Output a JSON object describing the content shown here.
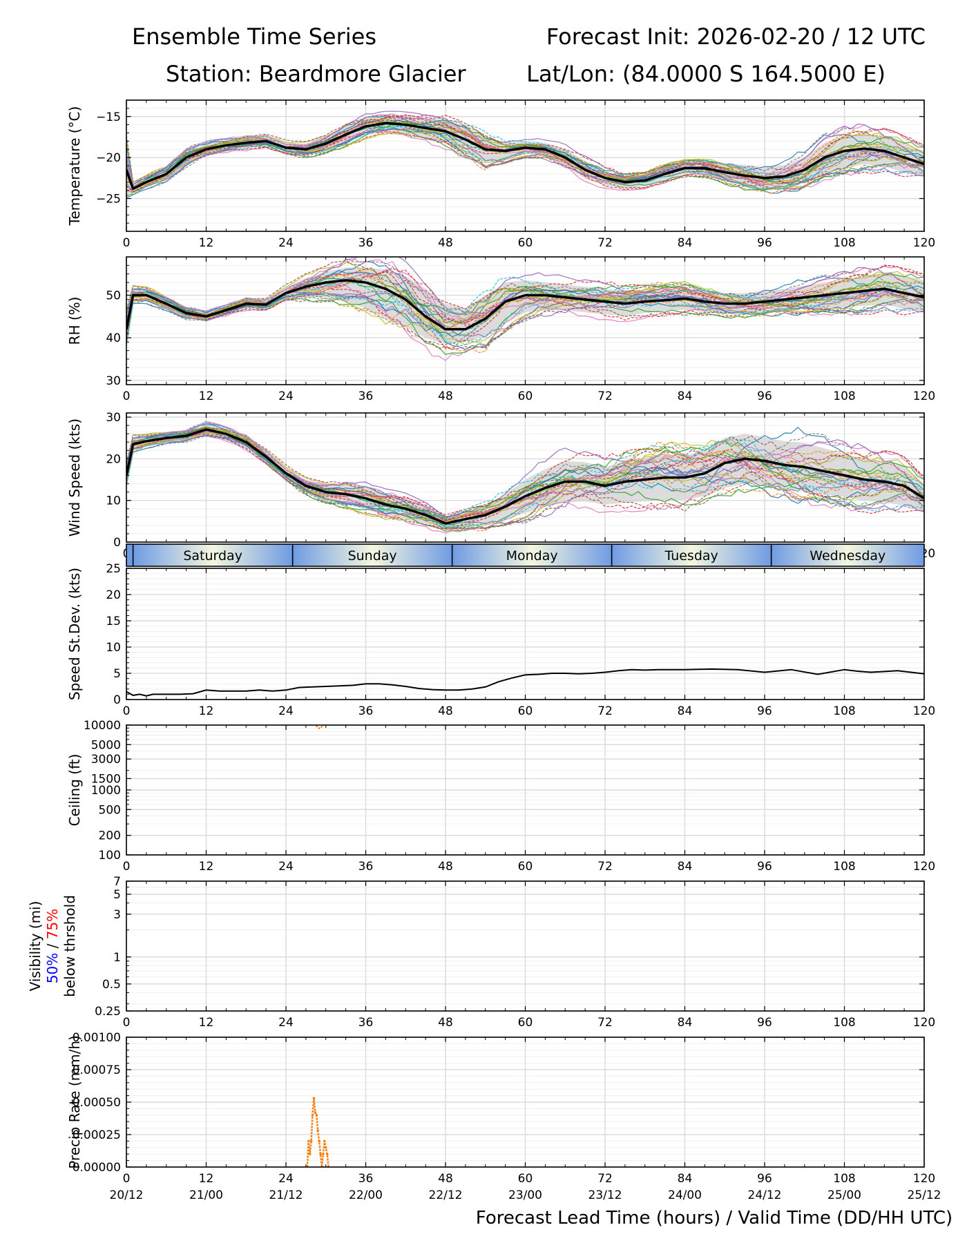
{
  "header": {
    "title_left": "Ensemble Time Series",
    "title_right": "Forecast Init: 2026-02-20 / 12 UTC",
    "station": "Station: Beardmore Glacier",
    "latlon": "Lat/Lon: (84.0000 S 164.5000 E)"
  },
  "x_axis": {
    "ticks": [
      0,
      12,
      24,
      36,
      48,
      60,
      72,
      84,
      96,
      108,
      120
    ],
    "valid_times": [
      "20/12",
      "21/00",
      "21/12",
      "22/00",
      "22/12",
      "23/00",
      "23/12",
      "24/00",
      "24/12",
      "25/00",
      "25/12"
    ],
    "label": "Forecast Lead Time (hours) / Valid Time (DD/HH UTC)"
  },
  "day_band": {
    "days": [
      "Saturday",
      "Sunday",
      "Monday",
      "Tuesday",
      "Wednesday"
    ],
    "boundaries": [
      1,
      25,
      49,
      73,
      97
    ],
    "colors": {
      "edge": "#6f9be3",
      "center": "#f4f7e0"
    }
  },
  "colors": {
    "members": [
      "#1f77b4",
      "#ff7f0e",
      "#2ca02c",
      "#d62728",
      "#9467bd",
      "#8c564b",
      "#e377c2",
      "#7f7f7f",
      "#bcbd22",
      "#17becf"
    ],
    "mean": "#000000",
    "spread": "#d3d3d3",
    "vis50": "#0000ff",
    "vis75": "#ff0000"
  },
  "chart_data": [
    {
      "id": "temperature",
      "type": "line",
      "ylabel": "Temperature (°C)",
      "ylim": [
        -29,
        -13
      ],
      "yticks": [
        -25,
        -20,
        -15
      ],
      "x": [
        0,
        1,
        3,
        6,
        9,
        12,
        15,
        18,
        21,
        24,
        27,
        30,
        33,
        36,
        39,
        42,
        45,
        48,
        51,
        54,
        57,
        60,
        63,
        66,
        69,
        72,
        75,
        78,
        81,
        84,
        87,
        90,
        93,
        96,
        99,
        102,
        105,
        108,
        111,
        114,
        117,
        120
      ],
      "mean": [
        -21.5,
        -23.8,
        -23.0,
        -22.0,
        -20.0,
        -19.0,
        -18.5,
        -18.2,
        -18.0,
        -18.8,
        -19.0,
        -18.3,
        -17.2,
        -16.2,
        -15.8,
        -16.0,
        -16.4,
        -16.8,
        -17.8,
        -19.0,
        -19.2,
        -18.8,
        -19.0,
        -20.0,
        -21.5,
        -22.5,
        -23.0,
        -22.8,
        -22.0,
        -21.3,
        -21.3,
        -21.8,
        -22.2,
        -22.5,
        -22.3,
        -21.5,
        -20.0,
        -19.2,
        -18.9,
        -19.2,
        -20.0,
        -20.8
      ],
      "spread_lo": [
        -24.5,
        -24.3,
        -23.6,
        -22.7,
        -20.8,
        -19.6,
        -19.1,
        -18.8,
        -18.6,
        -19.4,
        -19.7,
        -19.1,
        -18.2,
        -17.3,
        -16.8,
        -17.1,
        -17.6,
        -18.3,
        -19.5,
        -20.5,
        -20.2,
        -19.6,
        -19.8,
        -21.0,
        -22.6,
        -23.4,
        -23.7,
        -23.5,
        -22.8,
        -22.0,
        -22.2,
        -22.9,
        -23.5,
        -23.8,
        -23.7,
        -23.1,
        -21.9,
        -21.2,
        -20.8,
        -21.1,
        -21.8,
        -22.4
      ],
      "spread_hi": [
        -19.0,
        -23.2,
        -22.4,
        -21.3,
        -19.2,
        -18.4,
        -17.9,
        -17.6,
        -17.4,
        -18.2,
        -18.3,
        -17.5,
        -16.2,
        -15.2,
        -14.9,
        -15.0,
        -15.2,
        -15.4,
        -16.2,
        -17.4,
        -18.2,
        -18.0,
        -18.2,
        -19.0,
        -20.4,
        -21.6,
        -22.3,
        -22.1,
        -21.2,
        -20.6,
        -20.4,
        -20.7,
        -20.9,
        -21.2,
        -20.9,
        -20.0,
        -18.2,
        -17.3,
        -17.1,
        -17.4,
        -18.3,
        -19.2
      ],
      "members_shown": 30
    },
    {
      "id": "rh",
      "type": "line",
      "ylabel": "RH (%)",
      "ylim": [
        29,
        59
      ],
      "yticks": [
        30,
        40,
        50
      ],
      "x": [
        0,
        1,
        3,
        6,
        9,
        12,
        15,
        18,
        21,
        24,
        27,
        30,
        33,
        36,
        39,
        42,
        45,
        48,
        51,
        54,
        57,
        60,
        63,
        66,
        69,
        72,
        75,
        78,
        81,
        84,
        87,
        90,
        93,
        96,
        99,
        102,
        105,
        108,
        111,
        114,
        117,
        120
      ],
      "mean": [
        42.0,
        50.0,
        50.0,
        48.0,
        45.8,
        45.0,
        46.5,
        48.0,
        47.8,
        50.5,
        52.0,
        53.0,
        53.5,
        53.0,
        51.5,
        49.0,
        45.0,
        42.0,
        42.0,
        44.5,
        48.5,
        50.0,
        50.0,
        49.5,
        49.0,
        48.5,
        48.0,
        48.5,
        48.8,
        49.2,
        48.5,
        48.0,
        48.0,
        48.5,
        49.0,
        49.5,
        50.0,
        50.5,
        51.0,
        51.5,
        50.5,
        49.5
      ],
      "spread_lo": [
        40.0,
        48.5,
        48.5,
        46.8,
        44.8,
        44.2,
        45.6,
        47.0,
        46.8,
        49.2,
        49.5,
        49.5,
        48.5,
        47.0,
        44.5,
        42.5,
        40.0,
        38.5,
        39.0,
        40.5,
        43.5,
        46.0,
        46.5,
        46.5,
        46.0,
        45.5,
        45.0,
        45.8,
        46.2,
        46.6,
        46.0,
        45.6,
        45.6,
        46.0,
        46.5,
        46.8,
        47.0,
        47.2,
        47.5,
        47.8,
        46.8,
        46.0
      ],
      "spread_hi": [
        46.0,
        51.5,
        51.3,
        49.2,
        46.8,
        45.8,
        47.4,
        49.0,
        48.8,
        51.8,
        54.0,
        55.5,
        56.5,
        56.5,
        56.0,
        54.5,
        51.5,
        48.0,
        47.0,
        50.0,
        53.0,
        53.5,
        53.0,
        52.5,
        52.0,
        51.5,
        51.0,
        51.2,
        51.5,
        51.8,
        51.0,
        50.5,
        50.5,
        51.0,
        51.5,
        52.2,
        53.0,
        53.8,
        54.5,
        55.2,
        54.5,
        53.5
      ],
      "members_shown": 30
    },
    {
      "id": "wind",
      "type": "line",
      "ylabel": "Wind Speed (kts)",
      "ylim": [
        0,
        31
      ],
      "yticks": [
        0,
        10,
        20,
        30
      ],
      "x": [
        0,
        1,
        3,
        6,
        9,
        12,
        15,
        18,
        21,
        24,
        27,
        30,
        33,
        36,
        39,
        42,
        45,
        48,
        51,
        54,
        57,
        60,
        63,
        66,
        69,
        72,
        75,
        78,
        81,
        84,
        87,
        90,
        93,
        96,
        99,
        102,
        105,
        108,
        111,
        114,
        117,
        120
      ],
      "mean": [
        16.0,
        23.5,
        24.2,
        25.0,
        25.5,
        27.0,
        26.0,
        24.0,
        20.5,
        16.5,
        13.5,
        12.0,
        11.5,
        10.5,
        9.0,
        8.0,
        6.5,
        4.5,
        5.5,
        6.5,
        8.5,
        11.0,
        13.0,
        14.5,
        14.5,
        13.5,
        14.5,
        15.0,
        15.5,
        15.5,
        16.5,
        19.0,
        20.0,
        19.5,
        18.5,
        18.0,
        17.0,
        16.0,
        15.0,
        14.5,
        13.5,
        10.5
      ],
      "spread_lo": [
        14.0,
        22.0,
        23.0,
        24.0,
        24.5,
        25.8,
        24.8,
        22.8,
        19.2,
        15.2,
        12.0,
        10.2,
        9.2,
        7.8,
        6.5,
        5.5,
        4.2,
        3.0,
        3.5,
        4.2,
        5.5,
        7.0,
        8.5,
        9.5,
        9.8,
        9.0,
        9.5,
        9.8,
        10.0,
        10.2,
        11.0,
        13.0,
        14.0,
        13.8,
        12.8,
        12.2,
        11.5,
        10.8,
        10.0,
        9.5,
        8.8,
        7.0
      ],
      "spread_hi": [
        18.0,
        25.0,
        25.4,
        26.0,
        26.5,
        28.2,
        27.2,
        25.2,
        21.8,
        17.8,
        15.0,
        13.8,
        13.8,
        13.2,
        11.5,
        10.5,
        8.8,
        6.0,
        7.5,
        8.8,
        11.5,
        15.0,
        17.5,
        19.5,
        19.2,
        18.0,
        19.5,
        20.2,
        21.0,
        20.8,
        22.0,
        25.0,
        26.0,
        25.2,
        24.2,
        23.8,
        22.5,
        21.2,
        20.0,
        19.5,
        18.2,
        14.0
      ],
      "members_shown": 30
    },
    {
      "id": "speed_sd",
      "type": "line",
      "ylabel": "Speed St.Dev. (kts)",
      "ylim": [
        0,
        25
      ],
      "yticks": [
        0,
        5,
        10,
        15,
        20,
        25
      ],
      "x": [
        0,
        1,
        2,
        3,
        4,
        6,
        8,
        10,
        12,
        14,
        16,
        18,
        20,
        22,
        24,
        26,
        28,
        30,
        32,
        34,
        36,
        38,
        40,
        42,
        44,
        46,
        48,
        50,
        52,
        54,
        56,
        58,
        60,
        62,
        64,
        66,
        68,
        70,
        72,
        74,
        76,
        78,
        80,
        84,
        88,
        92,
        96,
        100,
        104,
        108,
        110,
        112,
        116,
        120
      ],
      "values": [
        1.5,
        0.8,
        1.0,
        0.7,
        1.0,
        1.0,
        1.0,
        1.1,
        1.8,
        1.6,
        1.6,
        1.6,
        1.8,
        1.6,
        1.8,
        2.3,
        2.4,
        2.5,
        2.6,
        2.7,
        3.0,
        3.0,
        2.8,
        2.5,
        2.1,
        1.9,
        1.8,
        1.8,
        2.0,
        2.4,
        3.4,
        4.1,
        4.7,
        4.8,
        5.0,
        5.0,
        4.9,
        5.0,
        5.2,
        5.5,
        5.7,
        5.6,
        5.7,
        5.7,
        5.8,
        5.7,
        5.2,
        5.7,
        4.8,
        5.7,
        5.4,
        5.2,
        5.5,
        4.9
      ]
    },
    {
      "id": "ceiling",
      "type": "line",
      "ylabel": "Ceiling (ft)",
      "yscale": "log",
      "ylim": [
        100,
        10000
      ],
      "yticks": [
        100,
        200,
        500,
        1000,
        1500,
        3000,
        5000,
        10000
      ],
      "fragment": {
        "x": [
          28.5,
          29.0,
          29.5
        ],
        "values": [
          9800,
          8900,
          9600
        ]
      }
    },
    {
      "id": "visibility",
      "type": "line",
      "ylabel_parts": [
        "Visibility (mi)",
        "50%",
        "/",
        "75%",
        "below thrshold"
      ],
      "yscale": "log",
      "ylim": [
        0.25,
        7
      ],
      "yticks": [
        0.25,
        0.5,
        1,
        3,
        5,
        7
      ]
    },
    {
      "id": "precip",
      "type": "line",
      "ylabel": "Precip Rate (mm/h)",
      "ylim": [
        0,
        0.001
      ],
      "yticks": [
        "0.00000",
        "0.00025",
        "0.00050",
        "0.00075",
        "0.00100"
      ],
      "x": [
        27.2,
        27.4,
        27.6,
        27.8,
        28.0,
        28.2,
        28.4,
        28.6,
        28.8,
        29.0,
        29.2,
        29.4,
        29.6,
        29.8,
        30.0,
        30.2,
        30.4
      ],
      "values": [
        0,
        0.0002,
        0.0001,
        0.0002,
        0.0004,
        0.00053,
        0.00042,
        0.0004,
        0.00028,
        0.0002,
        0.0001,
        0,
        0.0001,
        0.0002,
        0.00015,
        0.0001,
        0
      ]
    }
  ]
}
